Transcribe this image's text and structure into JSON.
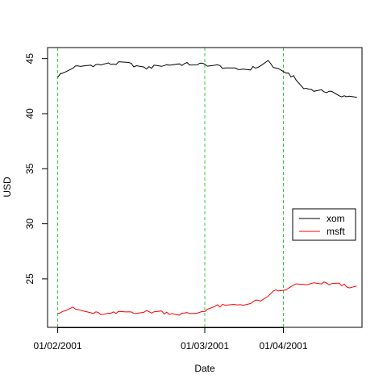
{
  "chart_data": {
    "type": "line",
    "title": "",
    "xlabel": "Date",
    "ylabel": "USD",
    "x_start": "2001-01-02",
    "x_end": "2001-04-30",
    "xlim": [
      "2000-12-29",
      "2001-05-02"
    ],
    "ylim": [
      20.6,
      46.0
    ],
    "x_ticks": [
      {
        "date": "2001-01-02",
        "label": "01/02/2001"
      },
      {
        "date": "2001-03-01",
        "label": "01/03/2001"
      },
      {
        "date": "2001-04-01",
        "label": "01/04/2001"
      }
    ],
    "y_ticks": [
      25,
      30,
      35,
      40,
      45
    ],
    "vlines": {
      "dates": [
        "2001-01-02",
        "2001-03-01",
        "2001-04-01"
      ],
      "color": "#33cc33",
      "style": "dashed"
    },
    "grid": false,
    "legend": {
      "position": "right",
      "entries": [
        "xom",
        "msft"
      ]
    },
    "series": [
      {
        "name": "xom",
        "color": "#000000",
        "x": [
          "2001-01-02",
          "2001-01-08",
          "2001-01-15",
          "2001-01-22",
          "2001-01-29",
          "2001-02-05",
          "2001-02-12",
          "2001-02-19",
          "2001-02-26",
          "2001-03-05",
          "2001-03-12",
          "2001-03-19",
          "2001-03-23",
          "2001-03-26",
          "2001-03-29",
          "2001-04-02",
          "2001-04-05",
          "2001-04-09",
          "2001-04-16",
          "2001-04-23",
          "2001-04-30"
        ],
        "values": [
          43.4,
          44.2,
          44.4,
          44.5,
          44.6,
          44.1,
          44.4,
          44.5,
          44.5,
          44.4,
          44.0,
          44.1,
          44.3,
          44.8,
          44.0,
          43.8,
          43.3,
          42.3,
          42.1,
          41.7,
          41.4
        ]
      },
      {
        "name": "msft",
        "color": "#ff0000",
        "x": [
          "2001-01-02",
          "2001-01-08",
          "2001-01-15",
          "2001-01-22",
          "2001-01-29",
          "2001-02-05",
          "2001-02-12",
          "2001-02-19",
          "2001-02-26",
          "2001-03-05",
          "2001-03-12",
          "2001-03-19",
          "2001-03-26",
          "2001-03-29",
          "2001-04-02",
          "2001-04-05",
          "2001-04-09",
          "2001-04-16",
          "2001-04-23",
          "2001-04-30"
        ],
        "values": [
          22.0,
          22.3,
          21.9,
          21.8,
          22.0,
          22.0,
          22.0,
          21.8,
          21.9,
          22.5,
          22.6,
          22.8,
          23.3,
          24.0,
          23.9,
          24.5,
          24.4,
          24.6,
          24.5,
          24.2
        ]
      }
    ]
  }
}
